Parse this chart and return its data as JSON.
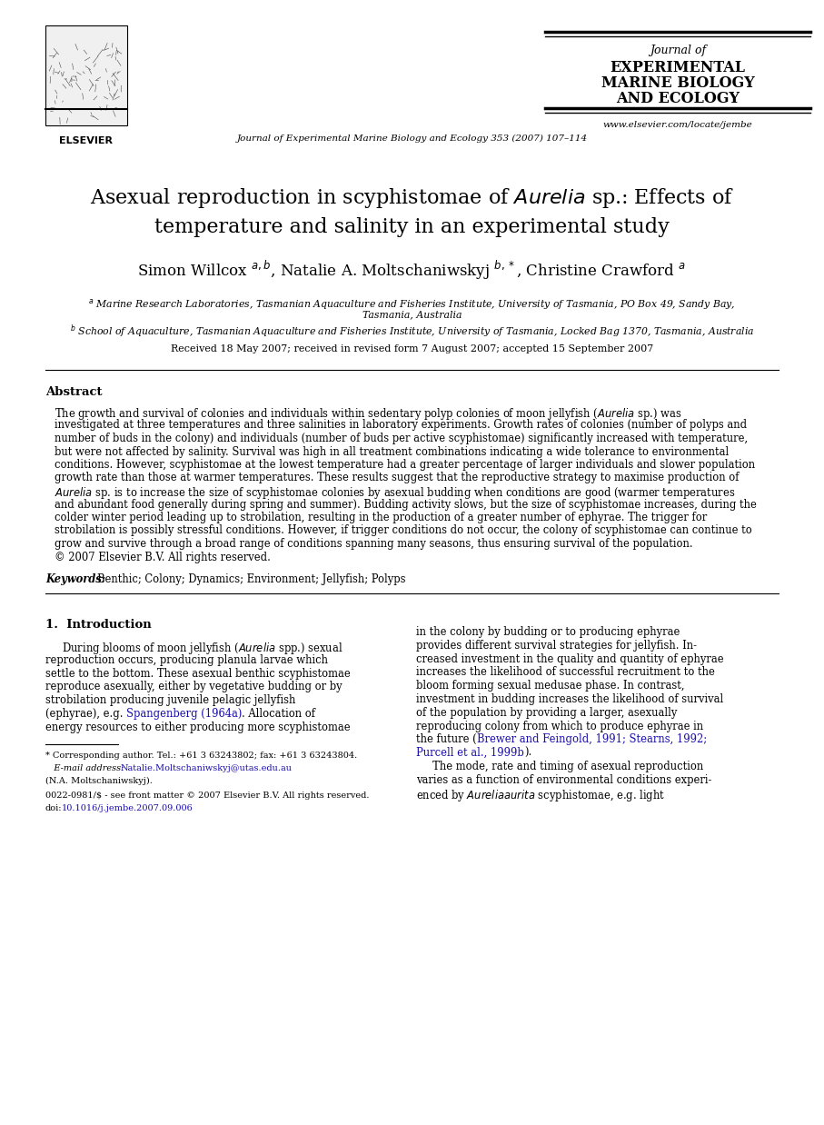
{
  "bg_color": "#ffffff",
  "page_width": 9.07,
  "page_height": 12.38,
  "dpi": 100,
  "header": {
    "journal_line": "Journal of Experimental Marine Biology and Ecology 353 (2007) 107–114",
    "journal_name_lines": [
      "Journal of",
      "EXPERIMENTAL",
      "MARINE BIOLOGY",
      "AND ECOLOGY"
    ],
    "journal_name_styles": [
      "italic",
      "bold",
      "bold",
      "bold"
    ],
    "website": "www.elsevier.com/locate/jembe"
  },
  "title_line1": "Asexual reproduction in scyphistomae of $\\mathit{Aurelia}$ sp.: Effects of",
  "title_line2": "temperature and salinity in an experimental study",
  "authors": "Simon Willcox $^{a,b}$, Natalie A. Moltschaniwskyj $^{b,*}$, Christine Crawford $^{a}$",
  "affil_a_line1": "$^{a}$ Marine Research Laboratories, Tasmanian Aquaculture and Fisheries Institute, University of Tasmania, PO Box 49, Sandy Bay,",
  "affil_a_line2": "Tasmania, Australia",
  "affil_b": "$^{b}$ School of Aquaculture, Tasmanian Aquaculture and Fisheries Institute, University of Tasmania, Locked Bag 1370, Tasmania, Australia",
  "received": "Received 18 May 2007; received in revised form 7 August 2007; accepted 15 September 2007",
  "abstract_title": "Abstract",
  "abstract_lines": [
    "The growth and survival of colonies and individuals within sedentary polyp colonies of moon jellyfish ($\\mathit{Aurelia}$ sp.) was",
    "investigated at three temperatures and three salinities in laboratory experiments. Growth rates of colonies (number of polyps and",
    "number of buds in the colony) and individuals (number of buds per active scyphistomae) significantly increased with temperature,",
    "but were not affected by salinity. Survival was high in all treatment combinations indicating a wide tolerance to environmental",
    "conditions. However, scyphistomae at the lowest temperature had a greater percentage of larger individuals and slower population",
    "growth rate than those at warmer temperatures. These results suggest that the reproductive strategy to maximise production of",
    "$\\mathit{Aurelia}$ sp. is to increase the size of scyphistomae colonies by asexual budding when conditions are good (warmer temperatures",
    "and abundant food generally during spring and summer). Budding activity slows, but the size of scyphistomae increases, during the",
    "colder winter period leading up to strobilation, resulting in the production of a greater number of ephyrae. The trigger for",
    "strobilation is possibly stressful conditions. However, if trigger conditions do not occur, the colony of scyphistomae can continue to",
    "grow and survive through a broad range of conditions spanning many seasons, thus ensuring survival of the population.",
    "© 2007 Elsevier B.V. All rights reserved."
  ],
  "keywords_label": "Keywords:",
  "keywords_text": "Benthic; Colony; Dynamics; Environment; Jellyfish; Polyps",
  "section1_title": "1.  Introduction",
  "col1_lines": [
    "     During blooms of moon jellyfish ($\\mathit{Aurelia}$ spp.) sexual",
    "reproduction occurs, producing planula larvae which",
    "settle to the bottom. These asexual benthic scyphistomae",
    "reproduce asexually, either by vegetative budding or by",
    "strobilation producing juvenile pelagic jellyfish",
    "(ephyrae), e.g. [[blue]]Spangenberg (1964a)[[/blue]]. Allocation of",
    "energy resources to either producing more scyphistomae"
  ],
  "col2_lines": [
    "in the colony by budding or to producing ephyrae",
    "provides different survival strategies for jellyfish. In-",
    "creased investment in the quality and quantity of ephyrae",
    "increases the likelihood of successful recruitment to the",
    "bloom forming sexual medusae phase. In contrast,",
    "investment in budding increases the likelihood of survival",
    "of the population by providing a larger, asexually",
    "reproducing colony from which to produce ephyrae in",
    "the future ([[blue]]Brewer and Feingold, 1991; Stearns, 1992;",
    "[[blue]]Purcell et al., 1999b[[/blue]]).",
    "     The mode, rate and timing of asexual reproduction",
    "varies as a function of environmental conditions experi-",
    "enced by $\\mathit{Aurelia aurita}$ scyphistomae, e.g. light"
  ],
  "footnote_sep_line": true,
  "footnote_star": "* Corresponding author. Tel.: +61 3 63243802; fax: +61 3 63243804.",
  "footnote_email_prefix": "   E-mail address: ",
  "footnote_email": "Natalie.Moltschaniwskyj@utas.edu.au",
  "footnote_name": "(N.A. Moltschaniwskyj).",
  "footnote_issn": "0022-0981/$ - see front matter © 2007 Elsevier B.V. All rights reserved.",
  "footnote_doi_prefix": "doi:",
  "footnote_doi": "10.1016/j.jembe.2007.09.006"
}
